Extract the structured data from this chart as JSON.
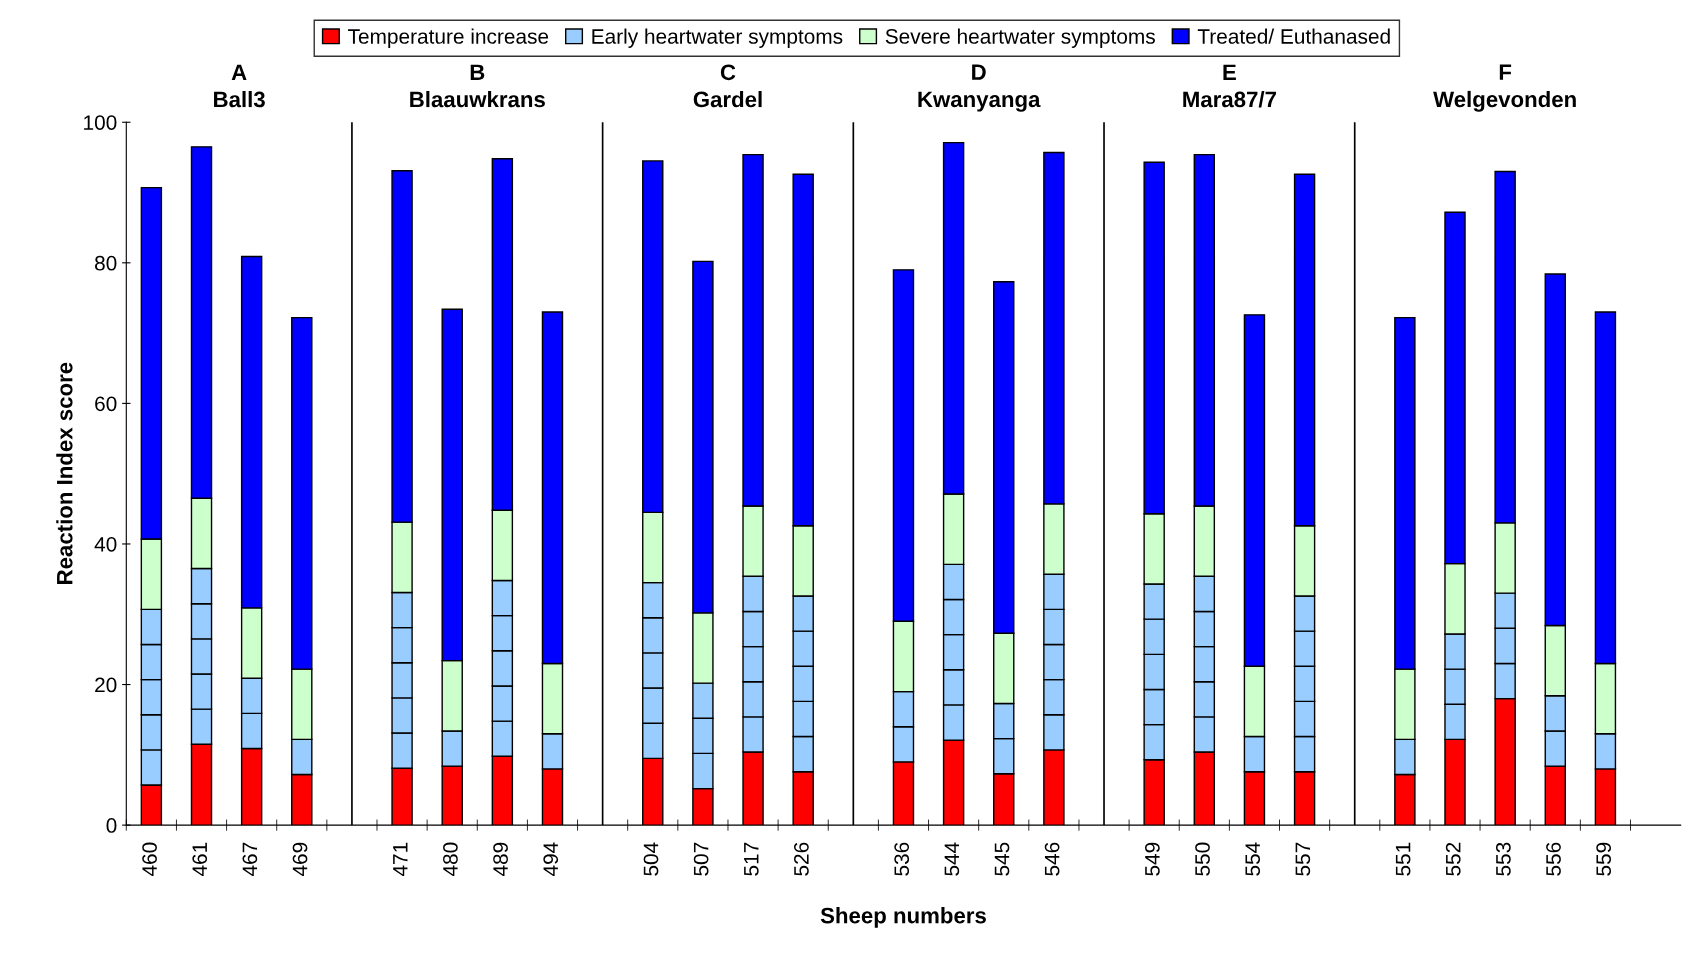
{
  "chart_data": {
    "type": "bar",
    "stacked": true,
    "xlabel": "Sheep numbers",
    "ylabel": "Reaction Index score",
    "categories": [
      "460",
      "461",
      "467",
      "469",
      null,
      "471",
      "480",
      "489",
      "494",
      null,
      "504",
      "507",
      "517",
      "526",
      null,
      "536",
      "544",
      "545",
      "546",
      null,
      "549",
      "550",
      "554",
      "557",
      null,
      "551",
      "552",
      "553",
      "556",
      "559",
      null
    ],
    "series": [
      {
        "name": "Temperature increase",
        "color": "#ff0000",
        "values": [
          5.7,
          11.5,
          10.9,
          7.2,
          null,
          8.1,
          8.4,
          9.8,
          8.0,
          null,
          9.5,
          5.2,
          10.4,
          7.6,
          null,
          9.0,
          12.1,
          7.3,
          10.7,
          null,
          9.3,
          10.4,
          7.6,
          7.6,
          null,
          7.2,
          12.2,
          18.0,
          8.4,
          8.0,
          null
        ]
      },
      {
        "name": "Early heartwater symptoms",
        "color": "#99ccff",
        "values": [
          5,
          5,
          5,
          5,
          null,
          5,
          5,
          5,
          5,
          null,
          5,
          5,
          5,
          5,
          null,
          5,
          5,
          5,
          5,
          null,
          5,
          5,
          5,
          5,
          null,
          5,
          5,
          5,
          5,
          5,
          null
        ]
      },
      {
        "color": "#99ccff",
        "values": [
          5,
          5,
          5,
          null,
          null,
          5,
          null,
          5,
          null,
          null,
          5,
          5,
          5,
          5,
          null,
          5,
          5,
          5,
          5,
          null,
          5,
          5,
          null,
          5,
          null,
          null,
          5,
          5,
          5,
          null,
          null
        ]
      },
      {
        "color": "#99ccff",
        "values": [
          5,
          5,
          null,
          null,
          null,
          5,
          null,
          5,
          null,
          null,
          5,
          5,
          5,
          5,
          null,
          null,
          5,
          null,
          5,
          null,
          5,
          5,
          null,
          5,
          null,
          null,
          5,
          5,
          null,
          null,
          null
        ]
      },
      {
        "color": "#99ccff",
        "values": [
          5,
          5,
          null,
          null,
          null,
          5,
          null,
          5,
          null,
          null,
          5,
          null,
          5,
          5,
          null,
          null,
          5,
          null,
          5,
          null,
          5,
          5,
          null,
          5,
          null,
          null,
          null,
          null,
          null,
          null,
          null
        ]
      },
      {
        "color": "#99ccff",
        "values": [
          5,
          5,
          null,
          null,
          null,
          5,
          null,
          5,
          null,
          null,
          5,
          null,
          5,
          5,
          null,
          null,
          5,
          null,
          5,
          null,
          5,
          5,
          null,
          5,
          null,
          null,
          null,
          null,
          null,
          null,
          null
        ]
      },
      {
        "name": "Severe heartwater symptoms",
        "color": "#ccffcc",
        "values": [
          10,
          10,
          10,
          10,
          null,
          10,
          10,
          10,
          10,
          null,
          10,
          10,
          10,
          10,
          null,
          10,
          10,
          10,
          10,
          null,
          10,
          10,
          10,
          10,
          null,
          10,
          10,
          10,
          10,
          10,
          null
        ]
      },
      {
        "name": "Treated/ Euthanased",
        "color": "#0000ff",
        "values": [
          50,
          50,
          50,
          50,
          null,
          50,
          50,
          50,
          50,
          null,
          50,
          50,
          50,
          50,
          null,
          50,
          50,
          50,
          50,
          null,
          50,
          50,
          50,
          50,
          null,
          50,
          50,
          50,
          50,
          50,
          null
        ]
      }
    ],
    "ylim": [
      0,
      100
    ],
    "yticks": [
      0,
      20,
      40,
      60,
      80,
      100
    ],
    "annotations": [
      "A\nBall3",
      "B\nBlaauwkrans",
      "C\nGardel",
      "D\nKwanyanga",
      "E\nMara87/7",
      "F\nWelgevonden"
    ],
    "legend": "top",
    "grid": "x"
  }
}
